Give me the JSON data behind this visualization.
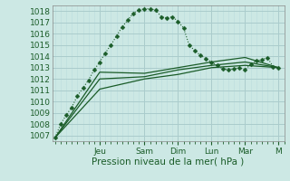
{
  "background_color": "#cce8e4",
  "grid_major_color": "#aacccc",
  "grid_minor_color": "#bbdddd",
  "line_color": "#1a5c28",
  "xlabel": "Pression niveau de la mer( hPa )",
  "ylim": [
    1006.5,
    1018.5
  ],
  "yticks": [
    1007,
    1008,
    1009,
    1010,
    1011,
    1012,
    1013,
    1014,
    1015,
    1016,
    1017,
    1018
  ],
  "day_labels": [
    "Jeu",
    "Sam",
    "Dim",
    "Lun",
    "Mar",
    "M"
  ],
  "day_positions": [
    8,
    16,
    22,
    28,
    34,
    40
  ],
  "xlim": [
    -0.5,
    41
  ],
  "series_main": {
    "x": [
      0,
      1,
      2,
      3,
      4,
      5,
      6,
      7,
      8,
      9,
      10,
      11,
      12,
      13,
      14,
      15,
      16,
      17,
      18,
      19,
      20,
      21,
      22,
      23,
      24,
      25,
      26,
      27,
      28,
      29,
      30,
      31,
      32,
      33,
      34,
      35,
      36,
      37,
      38,
      39,
      40
    ],
    "y": [
      1006.8,
      1008.0,
      1008.8,
      1009.5,
      1010.5,
      1011.2,
      1011.9,
      1012.8,
      1013.5,
      1014.3,
      1015.0,
      1015.8,
      1016.6,
      1017.2,
      1017.8,
      1018.1,
      1018.2,
      1018.2,
      1018.1,
      1017.5,
      1017.4,
      1017.5,
      1017.1,
      1016.5,
      1015.0,
      1014.5,
      1014.1,
      1013.8,
      1013.5,
      1013.2,
      1012.9,
      1012.8,
      1012.9,
      1013.0,
      1012.8,
      1013.3,
      1013.6,
      1013.7,
      1013.9,
      1013.1,
      1013.0
    ]
  },
  "series_flat": [
    {
      "x": [
        0,
        8,
        16,
        22,
        28,
        34,
        40
      ],
      "y": [
        1006.8,
        1012.6,
        1012.5,
        1013.0,
        1013.5,
        1013.9,
        1013.0
      ]
    },
    {
      "x": [
        0,
        8,
        16,
        22,
        28,
        34,
        40
      ],
      "y": [
        1006.8,
        1011.1,
        1012.0,
        1012.4,
        1013.0,
        1013.2,
        1013.0
      ]
    },
    {
      "x": [
        0,
        8,
        16,
        22,
        28,
        34,
        40
      ],
      "y": [
        1006.8,
        1012.0,
        1012.2,
        1012.8,
        1013.2,
        1013.5,
        1013.0
      ]
    }
  ]
}
